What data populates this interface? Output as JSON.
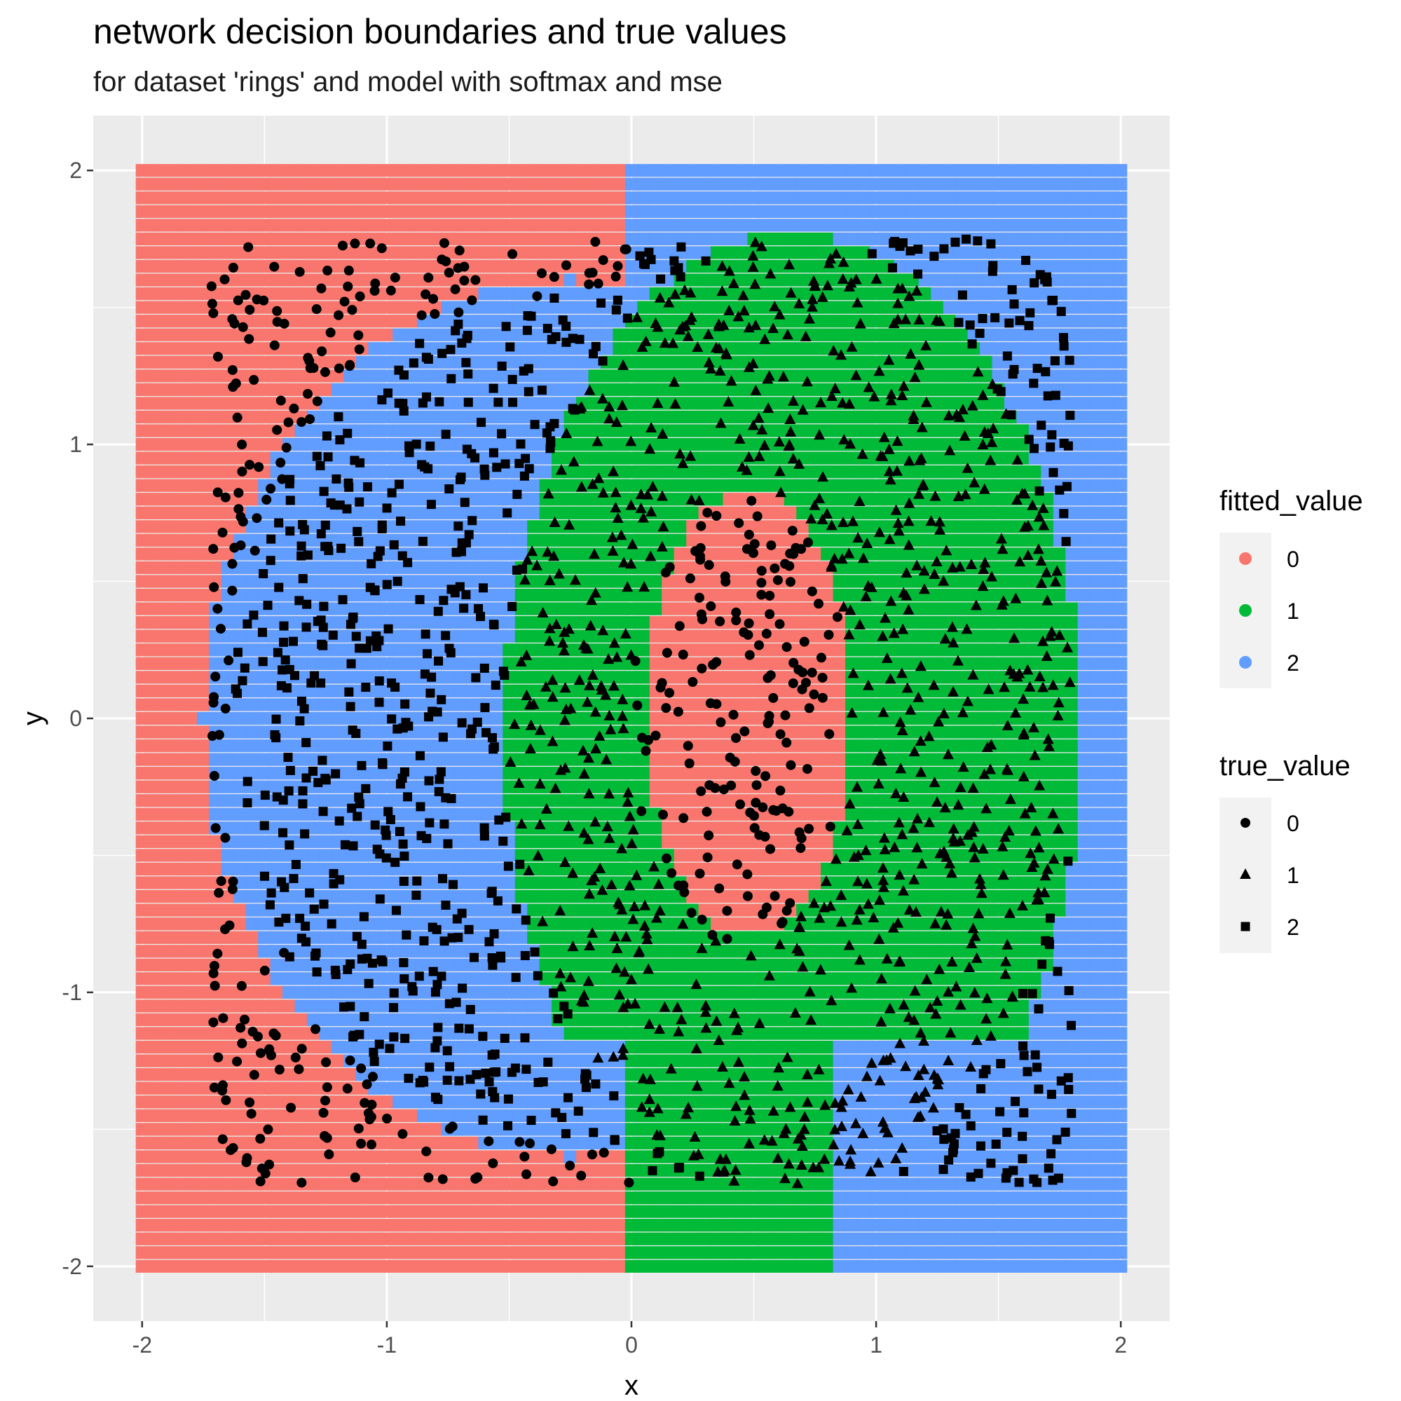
{
  "chart_data": {
    "type": "scatter",
    "title": "network decision boundaries and true values",
    "subtitle": "for dataset 'rings' and model with softmax and mse",
    "xlabel": "x",
    "ylabel": "y",
    "xlim": [
      -2.2,
      2.2
    ],
    "ylim": [
      -2.2,
      2.2
    ],
    "xticks": [
      -2,
      -1,
      0,
      1,
      2
    ],
    "yticks": [
      -2,
      -1,
      0,
      1,
      2
    ],
    "xtick_labels": [
      "-2",
      "-1",
      "0",
      "1",
      "2"
    ],
    "ytick_labels": [
      "-2",
      "-1",
      "0",
      "1",
      "2"
    ],
    "grid": true,
    "legend_position": "right",
    "fitted_value": {
      "title": "fitted_value",
      "levels": [
        "0",
        "1",
        "2"
      ],
      "colors": [
        "#F8766D",
        "#00BA38",
        "#619CFF"
      ],
      "grid_x_range": [
        -2,
        2
      ],
      "grid_y_range": [
        -2,
        2
      ]
    },
    "true_value": {
      "title": "true_value",
      "levels": [
        "0",
        "1",
        "2"
      ],
      "shapes": [
        "circle",
        "triangle",
        "square"
      ],
      "inner_ring_center": [
        0.45,
        0.0
      ],
      "inner_ring_radii": [
        0.42,
        0.85
      ],
      "middle_ring_center": [
        0.65,
        0.0
      ],
      "middle_ring_radii": [
        1.2,
        1.85
      ],
      "x_range": [
        -1.75,
        1.8
      ],
      "y_range": [
        -1.75,
        1.75
      ]
    },
    "background_color": "#EBEBEB",
    "gridline_color": "#FFFFFF"
  }
}
